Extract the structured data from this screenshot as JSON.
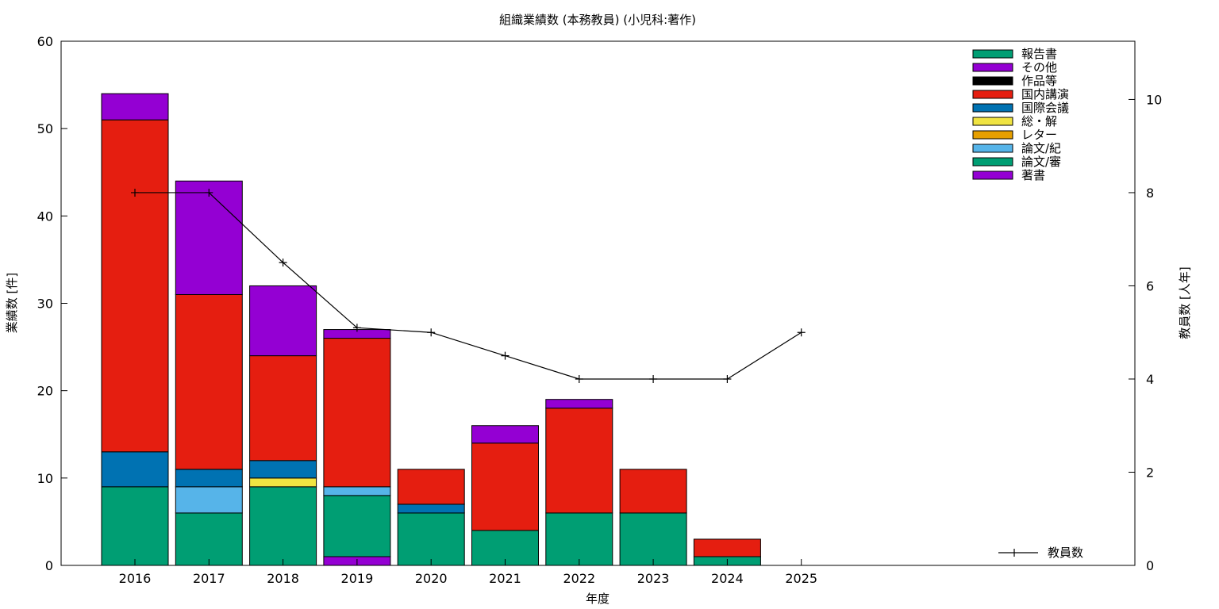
{
  "chart_data": {
    "type": "bar",
    "title": "組織業績数 (本務教員) (小児科:著作)",
    "xlabel": "年度",
    "ylabel": "業績数 [件]",
    "y2label": "教員数 [人年]",
    "categories": [
      "2016",
      "2017",
      "2018",
      "2019",
      "2020",
      "2021",
      "2022",
      "2023",
      "2024",
      "2025"
    ],
    "ylim": [
      0,
      60
    ],
    "y2lim": [
      0,
      11.25
    ],
    "yticks": [
      "0",
      "10",
      "20",
      "30",
      "40",
      "50",
      "60"
    ],
    "y2ticks": [
      "0",
      "2",
      "4",
      "6",
      "8",
      "10"
    ],
    "grid": false,
    "legend_position": "top-right",
    "stacked": true,
    "series": [
      {
        "name": "著書",
        "color": "#9400d3",
        "values": [
          0,
          0,
          0,
          1,
          0,
          0,
          0,
          0,
          0,
          0
        ]
      },
      {
        "name": "論文/審",
        "color": "#009e73",
        "values": [
          9,
          6,
          9,
          7,
          6,
          4,
          6,
          6,
          1,
          0
        ]
      },
      {
        "name": "論文/紀",
        "color": "#56b4e9",
        "values": [
          0,
          3,
          0,
          1,
          0,
          0,
          0,
          0,
          0,
          0
        ]
      },
      {
        "name": "レター",
        "color": "#e69f00",
        "values": [
          0,
          0,
          0,
          0,
          0,
          0,
          0,
          0,
          0,
          0
        ]
      },
      {
        "name": "総・解",
        "color": "#f0e442",
        "values": [
          0,
          0,
          1,
          0,
          0,
          0,
          0,
          0,
          0,
          0
        ]
      },
      {
        "name": "国際会議",
        "color": "#0072b2",
        "values": [
          4,
          2,
          2,
          0,
          1,
          0,
          0,
          0,
          0,
          0
        ]
      },
      {
        "name": "国内講演",
        "color": "#e51e10",
        "values": [
          38,
          20,
          12,
          17,
          4,
          10,
          12,
          5,
          2,
          0
        ]
      },
      {
        "name": "作品等",
        "color": "#000000",
        "values": [
          0,
          0,
          0,
          0,
          0,
          0,
          0,
          0,
          0,
          0
        ]
      },
      {
        "name": "その他",
        "color": "#9400d3",
        "values": [
          3,
          13,
          8,
          1,
          0,
          2,
          1,
          0,
          0,
          0
        ]
      },
      {
        "name": "報告書",
        "color": "#009e73",
        "values": [
          0,
          0,
          0,
          0,
          0,
          0,
          0,
          0,
          0,
          0
        ]
      }
    ],
    "line_series": {
      "name": "教員数",
      "color": "#000000",
      "axis": "y2",
      "values": [
        8,
        8,
        6.5,
        5.1,
        5.0,
        4.5,
        4.0,
        4.0,
        4.0,
        5.0
      ]
    }
  }
}
